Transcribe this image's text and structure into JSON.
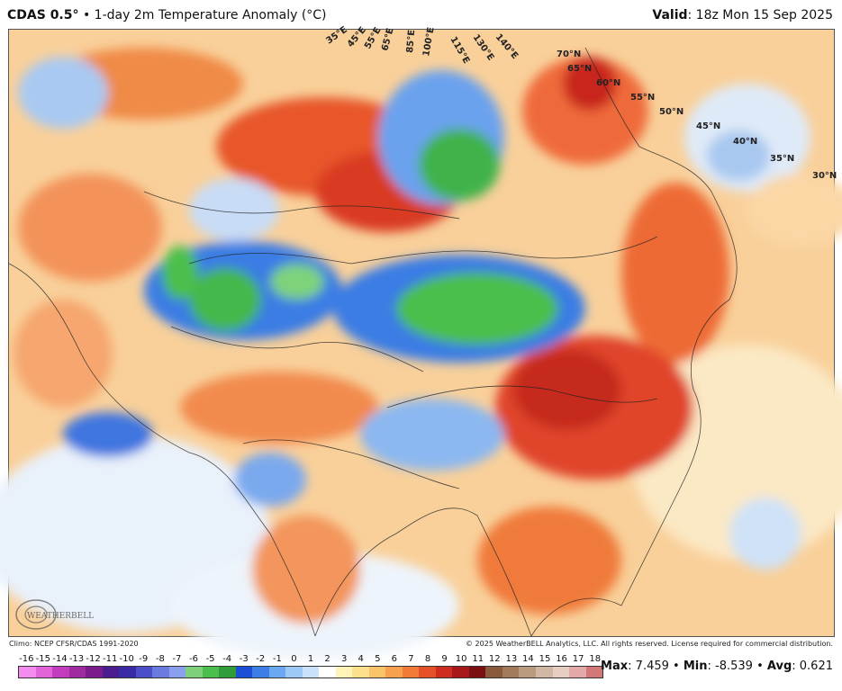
{
  "header": {
    "model": "CDAS 0.5°",
    "separator": "•",
    "product": "1-day 2m Temperature Anomaly (°C)",
    "valid_label": "Valid",
    "valid_value": ": 18z Mon 15 Sep 2025"
  },
  "map": {
    "lat_labels": [
      "70°N",
      "65°N",
      "60°N",
      "55°N",
      "50°N",
      "45°N",
      "40°N",
      "35°N",
      "30°N"
    ],
    "lon_labels": [
      "35°E",
      "45°E",
      "55°E",
      "65°E",
      "85°E",
      "100°E",
      "115°E",
      "130°E",
      "140°E"
    ],
    "logo_text": "WEATHERBELL"
  },
  "footer": {
    "climo": "Climo: NCEP CFSR/CDAS 1991-2020",
    "copyright": "© 2025 WeatherBELL Analytics, LLC. All rights reserved. License required for commercial distribution."
  },
  "scale": {
    "ticks": [
      "-16",
      "-15",
      "-14",
      "-13",
      "-12",
      "-11",
      "-10",
      "-9",
      "-8",
      "-7",
      "-6",
      "-5",
      "-4",
      "-3",
      "-2",
      "-1",
      "0",
      "1",
      "2",
      "3",
      "4",
      "5",
      "6",
      "7",
      "8",
      "9",
      "10",
      "11",
      "12",
      "13",
      "14",
      "15",
      "16",
      "17",
      "18"
    ],
    "colors": [
      "#f48cf0",
      "#e064d8",
      "#c23cbd",
      "#a02aa0",
      "#7a1c8c",
      "#4b1d8e",
      "#3a2aa6",
      "#4a4fc9",
      "#6a7be0",
      "#8aa0ee",
      "#7fd07a",
      "#4bbf4b",
      "#2f9e3a",
      "#1c4fd6",
      "#3d7ee6",
      "#6aa8f2",
      "#9cc9f6",
      "#c9e2fa",
      "#ffffff",
      "#fff3b8",
      "#fde08c",
      "#fbc46a",
      "#f7a14e",
      "#f27a37",
      "#e65028",
      "#cf2b1e",
      "#a8171a",
      "#7a1010",
      "#8a5a3c",
      "#a07a5a",
      "#b99a7e",
      "#d0b8a4",
      "#e6cfc2",
      "#e3a9a9",
      "#d27878"
    ],
    "stats": {
      "max_label": "Max",
      "max_value": ": 7.459",
      "min_label": "Min",
      "min_value": ": -8.539",
      "avg_label": "Avg",
      "avg_value": ": 0.621",
      "sep": "•"
    }
  }
}
